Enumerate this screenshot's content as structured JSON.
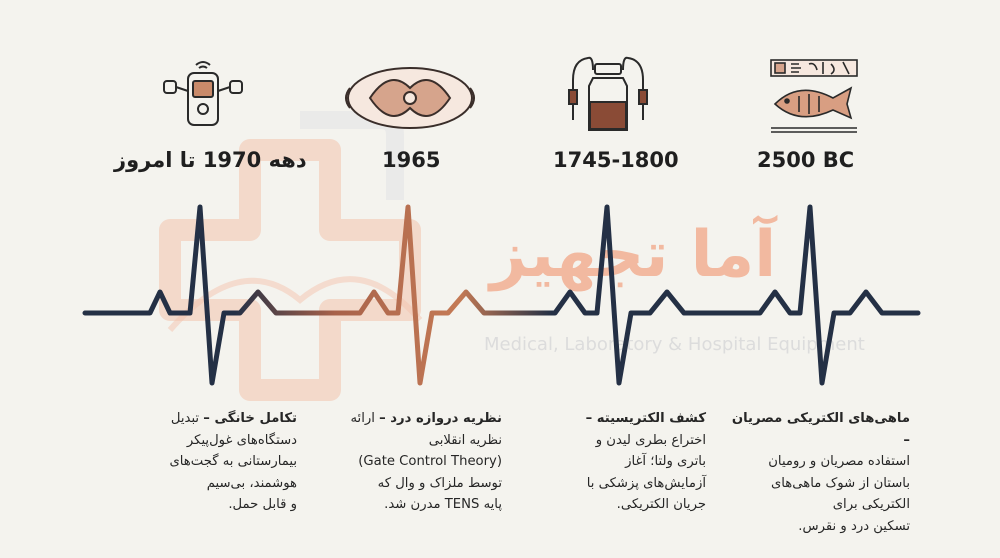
{
  "watermark": {
    "brand": "آما تجهیز",
    "subtitle": "Medical, Laboratory & Hospital Equipment"
  },
  "colors": {
    "dark_line": "#243045",
    "accent": "#b86a45",
    "watermark": "#f2b9a0"
  },
  "milestones": [
    {
      "year": "2500 BC",
      "icon": "egyptian-fish-icon",
      "title": "ماهی‌های الکتریکی مصریان –",
      "lines": [
        "استفاده مصریان و رومیان",
        "باستان از شوک ماهی‌های",
        "الکتریکی برای",
        "تسکین درد و نقرس."
      ]
    },
    {
      "year": "1745-1800",
      "icon": "leyden-jar-icon",
      "title": "کشف الکتریسیته –",
      "lines": [
        "اختراع بطری لیدن و",
        "باتری ولتا؛ آغاز",
        "آزمایش‌های پزشکی با",
        "جریان الکتریکی."
      ]
    },
    {
      "year": "1965",
      "icon": "spinal-cord-icon",
      "title": "نظریه دروازه درد –",
      "title_rest": " ارائه",
      "lines": [
        "نظریه انقلابی",
        "(Gate Control Theory)",
        "توسط ملزاک و وال که",
        "پایه TENS مدرن شد."
      ]
    },
    {
      "year": "دهه 1970 تا امروز",
      "icon": "tens-device-icon",
      "title": "تکامل خانگی –",
      "title_rest": " تبدیل",
      "lines": [
        "دستگاه‌های غول‌پیکر",
        "بیمارستانی به گجت‌های",
        "هوشمند، بی‌سیم",
        "و قابل حمل."
      ]
    }
  ]
}
